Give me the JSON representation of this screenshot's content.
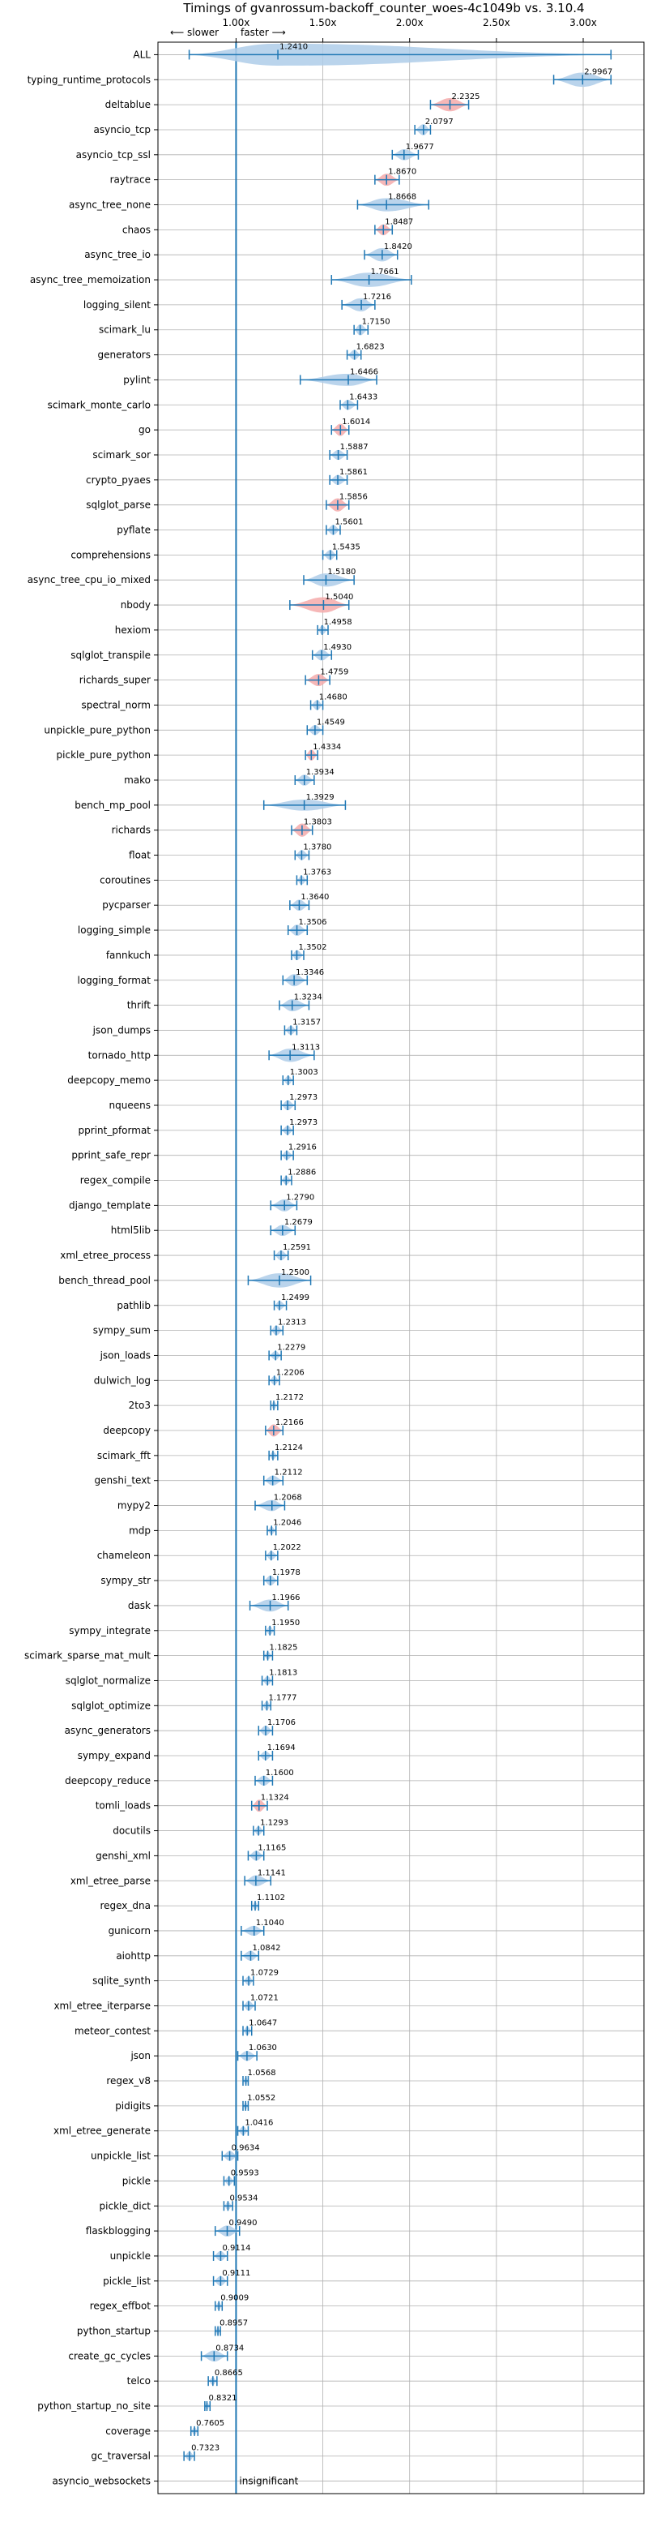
{
  "chart_data": {
    "type": "violin",
    "title": "Timings of gvanrossum-backoff_counter_woes-4c1049b vs. 3.10.4",
    "xlim": [
      0.55,
      3.35
    ],
    "x_ticks": [
      1.0,
      1.5,
      2.0,
      2.5,
      3.0
    ],
    "x_tick_labels": [
      "1.00x",
      "1.50x",
      "2.00x",
      "2.50x",
      "3.00x"
    ],
    "annotation_slower": "⟵ slower",
    "annotation_faster": "faster ⟶",
    "reference_line": 1.0,
    "insignificant_label": "insignificant",
    "grid": true,
    "colors": {
      "faster": "#aecde9",
      "slower": "#f4aaaa",
      "line": "#1f77b4",
      "grid": "#b0b0b0"
    },
    "benchmarks": [
      {
        "name": "ALL",
        "value": 1.241,
        "lo": 0.73,
        "hi": 3.16,
        "w": 1.0,
        "c": "blue"
      },
      {
        "name": "typing_runtime_protocols",
        "value": 2.9967,
        "lo": 2.83,
        "hi": 3.16,
        "w": 0.65,
        "c": "blue"
      },
      {
        "name": "deltablue",
        "value": 2.2325,
        "lo": 2.12,
        "hi": 2.34,
        "w": 0.6,
        "c": "red"
      },
      {
        "name": "asyncio_tcp",
        "value": 2.0797,
        "lo": 2.03,
        "hi": 2.12,
        "w": 0.5,
        "c": "blue"
      },
      {
        "name": "asyncio_tcp_ssl",
        "value": 1.9677,
        "lo": 1.9,
        "hi": 2.05,
        "w": 0.5,
        "c": "blue"
      },
      {
        "name": "raytrace",
        "value": 1.867,
        "lo": 1.8,
        "hi": 1.94,
        "w": 0.55,
        "c": "red"
      },
      {
        "name": "async_tree_none",
        "value": 1.8668,
        "lo": 1.7,
        "hi": 2.11,
        "w": 0.6,
        "c": "blue"
      },
      {
        "name": "chaos",
        "value": 1.8487,
        "lo": 1.8,
        "hi": 1.9,
        "w": 0.5,
        "c": "red"
      },
      {
        "name": "async_tree_io",
        "value": 1.842,
        "lo": 1.74,
        "hi": 1.93,
        "w": 0.6,
        "c": "blue"
      },
      {
        "name": "async_tree_memoization",
        "value": 1.7661,
        "lo": 1.55,
        "hi": 2.01,
        "w": 0.65,
        "c": "blue"
      },
      {
        "name": "logging_silent",
        "value": 1.7216,
        "lo": 1.61,
        "hi": 1.8,
        "w": 0.6,
        "c": "blue"
      },
      {
        "name": "scimark_lu",
        "value": 1.715,
        "lo": 1.68,
        "hi": 1.76,
        "w": 0.5,
        "c": "blue"
      },
      {
        "name": "generators",
        "value": 1.6823,
        "lo": 1.64,
        "hi": 1.72,
        "w": 0.45,
        "c": "blue"
      },
      {
        "name": "pylint",
        "value": 1.6466,
        "lo": 1.37,
        "hi": 1.81,
        "w": 0.55,
        "c": "blue"
      },
      {
        "name": "scimark_monte_carlo",
        "value": 1.6433,
        "lo": 1.6,
        "hi": 1.7,
        "w": 0.45,
        "c": "blue"
      },
      {
        "name": "go",
        "value": 1.6014,
        "lo": 1.55,
        "hi": 1.65,
        "w": 0.55,
        "c": "red"
      },
      {
        "name": "scimark_sor",
        "value": 1.5887,
        "lo": 1.54,
        "hi": 1.64,
        "w": 0.45,
        "c": "blue"
      },
      {
        "name": "crypto_pyaes",
        "value": 1.5861,
        "lo": 1.54,
        "hi": 1.64,
        "w": 0.45,
        "c": "blue"
      },
      {
        "name": "sqlglot_parse",
        "value": 1.5856,
        "lo": 1.52,
        "hi": 1.65,
        "w": 0.6,
        "c": "red"
      },
      {
        "name": "pyflate",
        "value": 1.5601,
        "lo": 1.52,
        "hi": 1.6,
        "w": 0.45,
        "c": "blue"
      },
      {
        "name": "comprehensions",
        "value": 1.5435,
        "lo": 1.5,
        "hi": 1.58,
        "w": 0.45,
        "c": "blue"
      },
      {
        "name": "async_tree_cpu_io_mixed",
        "value": 1.518,
        "lo": 1.39,
        "hi": 1.68,
        "w": 0.6,
        "c": "blue"
      },
      {
        "name": "nbody",
        "value": 1.504,
        "lo": 1.31,
        "hi": 1.65,
        "w": 0.7,
        "c": "red"
      },
      {
        "name": "hexiom",
        "value": 1.4958,
        "lo": 1.47,
        "hi": 1.53,
        "w": 0.4,
        "c": "blue"
      },
      {
        "name": "sqlglot_transpile",
        "value": 1.493,
        "lo": 1.44,
        "hi": 1.55,
        "w": 0.5,
        "c": "blue"
      },
      {
        "name": "richards_super",
        "value": 1.4759,
        "lo": 1.4,
        "hi": 1.54,
        "w": 0.55,
        "c": "red"
      },
      {
        "name": "spectral_norm",
        "value": 1.468,
        "lo": 1.43,
        "hi": 1.5,
        "w": 0.45,
        "c": "blue"
      },
      {
        "name": "unpickle_pure_python",
        "value": 1.4549,
        "lo": 1.41,
        "hi": 1.5,
        "w": 0.45,
        "c": "blue"
      },
      {
        "name": "pickle_pure_python",
        "value": 1.4334,
        "lo": 1.4,
        "hi": 1.47,
        "w": 0.5,
        "c": "red"
      },
      {
        "name": "mako",
        "value": 1.3934,
        "lo": 1.34,
        "hi": 1.45,
        "w": 0.5,
        "c": "blue"
      },
      {
        "name": "bench_mp_pool",
        "value": 1.3929,
        "lo": 1.16,
        "hi": 1.63,
        "w": 0.5,
        "c": "blue"
      },
      {
        "name": "richards",
        "value": 1.3803,
        "lo": 1.32,
        "hi": 1.44,
        "w": 0.6,
        "c": "red"
      },
      {
        "name": "float",
        "value": 1.378,
        "lo": 1.34,
        "hi": 1.42,
        "w": 0.45,
        "c": "blue"
      },
      {
        "name": "coroutines",
        "value": 1.3763,
        "lo": 1.35,
        "hi": 1.41,
        "w": 0.4,
        "c": "blue"
      },
      {
        "name": "pycparser",
        "value": 1.364,
        "lo": 1.31,
        "hi": 1.42,
        "w": 0.5,
        "c": "blue"
      },
      {
        "name": "logging_simple",
        "value": 1.3506,
        "lo": 1.3,
        "hi": 1.41,
        "w": 0.5,
        "c": "blue"
      },
      {
        "name": "fannkuch",
        "value": 1.3502,
        "lo": 1.32,
        "hi": 1.39,
        "w": 0.45,
        "c": "blue"
      },
      {
        "name": "logging_format",
        "value": 1.3346,
        "lo": 1.27,
        "hi": 1.41,
        "w": 0.55,
        "c": "blue"
      },
      {
        "name": "thrift",
        "value": 1.3234,
        "lo": 1.25,
        "hi": 1.42,
        "w": 0.55,
        "c": "blue"
      },
      {
        "name": "json_dumps",
        "value": 1.3157,
        "lo": 1.28,
        "hi": 1.35,
        "w": 0.4,
        "c": "blue"
      },
      {
        "name": "tornado_http",
        "value": 1.3113,
        "lo": 1.19,
        "hi": 1.45,
        "w": 0.6,
        "c": "blue"
      },
      {
        "name": "deepcopy_memo",
        "value": 1.3003,
        "lo": 1.27,
        "hi": 1.33,
        "w": 0.4,
        "c": "blue"
      },
      {
        "name": "nqueens",
        "value": 1.2973,
        "lo": 1.26,
        "hi": 1.34,
        "w": 0.45,
        "c": "blue"
      },
      {
        "name": "pprint_pformat",
        "value": 1.2973,
        "lo": 1.26,
        "hi": 1.33,
        "w": 0.4,
        "c": "blue"
      },
      {
        "name": "pprint_safe_repr",
        "value": 1.2916,
        "lo": 1.26,
        "hi": 1.33,
        "w": 0.4,
        "c": "blue"
      },
      {
        "name": "regex_compile",
        "value": 1.2886,
        "lo": 1.26,
        "hi": 1.32,
        "w": 0.4,
        "c": "blue"
      },
      {
        "name": "django_template",
        "value": 1.279,
        "lo": 1.2,
        "hi": 1.35,
        "w": 0.55,
        "c": "blue"
      },
      {
        "name": "html5lib",
        "value": 1.2679,
        "lo": 1.2,
        "hi": 1.34,
        "w": 0.5,
        "c": "blue"
      },
      {
        "name": "xml_etree_process",
        "value": 1.2591,
        "lo": 1.22,
        "hi": 1.3,
        "w": 0.45,
        "c": "blue"
      },
      {
        "name": "bench_thread_pool",
        "value": 1.25,
        "lo": 1.07,
        "hi": 1.43,
        "w": 0.65,
        "c": "blue"
      },
      {
        "name": "pathlib",
        "value": 1.2499,
        "lo": 1.22,
        "hi": 1.29,
        "w": 0.4,
        "c": "blue"
      },
      {
        "name": "sympy_sum",
        "value": 1.2313,
        "lo": 1.2,
        "hi": 1.27,
        "w": 0.45,
        "c": "blue"
      },
      {
        "name": "json_loads",
        "value": 1.2279,
        "lo": 1.19,
        "hi": 1.26,
        "w": 0.4,
        "c": "blue"
      },
      {
        "name": "dulwich_log",
        "value": 1.2206,
        "lo": 1.19,
        "hi": 1.25,
        "w": 0.4,
        "c": "blue"
      },
      {
        "name": "2to3",
        "value": 1.2172,
        "lo": 1.2,
        "hi": 1.24,
        "w": 0.35,
        "c": "blue"
      },
      {
        "name": "deepcopy",
        "value": 1.2166,
        "lo": 1.17,
        "hi": 1.27,
        "w": 0.55,
        "c": "red"
      },
      {
        "name": "scimark_fft",
        "value": 1.2124,
        "lo": 1.19,
        "hi": 1.24,
        "w": 0.35,
        "c": "blue"
      },
      {
        "name": "genshi_text",
        "value": 1.2112,
        "lo": 1.16,
        "hi": 1.27,
        "w": 0.45,
        "c": "blue"
      },
      {
        "name": "mypy2",
        "value": 1.2068,
        "lo": 1.11,
        "hi": 1.28,
        "w": 0.5,
        "c": "blue"
      },
      {
        "name": "mdp",
        "value": 1.2046,
        "lo": 1.18,
        "hi": 1.23,
        "w": 0.35,
        "c": "blue"
      },
      {
        "name": "chameleon",
        "value": 1.2022,
        "lo": 1.17,
        "hi": 1.24,
        "w": 0.4,
        "c": "blue"
      },
      {
        "name": "sympy_str",
        "value": 1.1978,
        "lo": 1.16,
        "hi": 1.24,
        "w": 0.45,
        "c": "blue"
      },
      {
        "name": "dask",
        "value": 1.1966,
        "lo": 1.08,
        "hi": 1.3,
        "w": 0.55,
        "c": "blue"
      },
      {
        "name": "sympy_integrate",
        "value": 1.195,
        "lo": 1.17,
        "hi": 1.22,
        "w": 0.4,
        "c": "blue"
      },
      {
        "name": "scimark_sparse_mat_mult",
        "value": 1.1825,
        "lo": 1.16,
        "hi": 1.21,
        "w": 0.35,
        "c": "blue"
      },
      {
        "name": "sqlglot_normalize",
        "value": 1.1813,
        "lo": 1.15,
        "hi": 1.21,
        "w": 0.4,
        "c": "blue"
      },
      {
        "name": "sqlglot_optimize",
        "value": 1.1777,
        "lo": 1.15,
        "hi": 1.2,
        "w": 0.4,
        "c": "blue"
      },
      {
        "name": "async_generators",
        "value": 1.1706,
        "lo": 1.13,
        "hi": 1.21,
        "w": 0.45,
        "c": "blue"
      },
      {
        "name": "sympy_expand",
        "value": 1.1694,
        "lo": 1.13,
        "hi": 1.21,
        "w": 0.4,
        "c": "blue"
      },
      {
        "name": "deepcopy_reduce",
        "value": 1.16,
        "lo": 1.11,
        "hi": 1.21,
        "w": 0.45,
        "c": "blue"
      },
      {
        "name": "tomli_loads",
        "value": 1.1324,
        "lo": 1.09,
        "hi": 1.18,
        "w": 0.55,
        "c": "red"
      },
      {
        "name": "docutils",
        "value": 1.1293,
        "lo": 1.1,
        "hi": 1.16,
        "w": 0.4,
        "c": "blue"
      },
      {
        "name": "genshi_xml",
        "value": 1.1165,
        "lo": 1.07,
        "hi": 1.16,
        "w": 0.45,
        "c": "blue"
      },
      {
        "name": "xml_etree_parse",
        "value": 1.1141,
        "lo": 1.05,
        "hi": 1.2,
        "w": 0.5,
        "c": "blue"
      },
      {
        "name": "regex_dna",
        "value": 1.1102,
        "lo": 1.09,
        "hi": 1.13,
        "w": 0.35,
        "c": "blue"
      },
      {
        "name": "gunicorn",
        "value": 1.104,
        "lo": 1.03,
        "hi": 1.16,
        "w": 0.45,
        "c": "blue"
      },
      {
        "name": "aiohttp",
        "value": 1.0842,
        "lo": 1.03,
        "hi": 1.13,
        "w": 0.45,
        "c": "blue"
      },
      {
        "name": "sqlite_synth",
        "value": 1.0729,
        "lo": 1.04,
        "hi": 1.1,
        "w": 0.4,
        "c": "blue"
      },
      {
        "name": "xml_etree_iterparse",
        "value": 1.0721,
        "lo": 1.04,
        "hi": 1.11,
        "w": 0.45,
        "c": "blue"
      },
      {
        "name": "meteor_contest",
        "value": 1.0647,
        "lo": 1.04,
        "hi": 1.09,
        "w": 0.4,
        "c": "blue"
      },
      {
        "name": "json",
        "value": 1.063,
        "lo": 1.01,
        "hi": 1.12,
        "w": 0.45,
        "c": "blue"
      },
      {
        "name": "regex_v8",
        "value": 1.0568,
        "lo": 1.04,
        "hi": 1.07,
        "w": 0.35,
        "c": "blue"
      },
      {
        "name": "pidigits",
        "value": 1.0552,
        "lo": 1.04,
        "hi": 1.07,
        "w": 0.35,
        "c": "blue"
      },
      {
        "name": "xml_etree_generate",
        "value": 1.0416,
        "lo": 1.01,
        "hi": 1.07,
        "w": 0.4,
        "c": "blue"
      },
      {
        "name": "unpickle_list",
        "value": 0.9634,
        "lo": 0.92,
        "hi": 1.01,
        "w": 0.45,
        "c": "blue"
      },
      {
        "name": "pickle",
        "value": 0.9593,
        "lo": 0.93,
        "hi": 0.99,
        "w": 0.4,
        "c": "blue"
      },
      {
        "name": "pickle_dict",
        "value": 0.9534,
        "lo": 0.93,
        "hi": 0.98,
        "w": 0.35,
        "c": "blue"
      },
      {
        "name": "flaskblogging",
        "value": 0.949,
        "lo": 0.88,
        "hi": 1.02,
        "w": 0.5,
        "c": "blue"
      },
      {
        "name": "unpickle",
        "value": 0.9114,
        "lo": 0.87,
        "hi": 0.95,
        "w": 0.45,
        "c": "blue"
      },
      {
        "name": "pickle_list",
        "value": 0.9111,
        "lo": 0.87,
        "hi": 0.95,
        "w": 0.45,
        "c": "blue"
      },
      {
        "name": "regex_effbot",
        "value": 0.9009,
        "lo": 0.88,
        "hi": 0.92,
        "w": 0.35,
        "c": "blue"
      },
      {
        "name": "python_startup",
        "value": 0.8957,
        "lo": 0.88,
        "hi": 0.91,
        "w": 0.35,
        "c": "blue"
      },
      {
        "name": "create_gc_cycles",
        "value": 0.8734,
        "lo": 0.8,
        "hi": 0.95,
        "w": 0.5,
        "c": "blue"
      },
      {
        "name": "telco",
        "value": 0.8665,
        "lo": 0.84,
        "hi": 0.89,
        "w": 0.35,
        "c": "blue"
      },
      {
        "name": "python_startup_no_site",
        "value": 0.8321,
        "lo": 0.82,
        "hi": 0.85,
        "w": 0.35,
        "c": "blue"
      },
      {
        "name": "coverage",
        "value": 0.7605,
        "lo": 0.74,
        "hi": 0.78,
        "w": 0.35,
        "c": "blue"
      },
      {
        "name": "gc_traversal",
        "value": 0.7323,
        "lo": 0.7,
        "hi": 0.76,
        "w": 0.4,
        "c": "blue"
      },
      {
        "name": "asyncio_websockets",
        "value": null,
        "lo": null,
        "hi": null,
        "w": 0,
        "c": "none"
      }
    ]
  }
}
